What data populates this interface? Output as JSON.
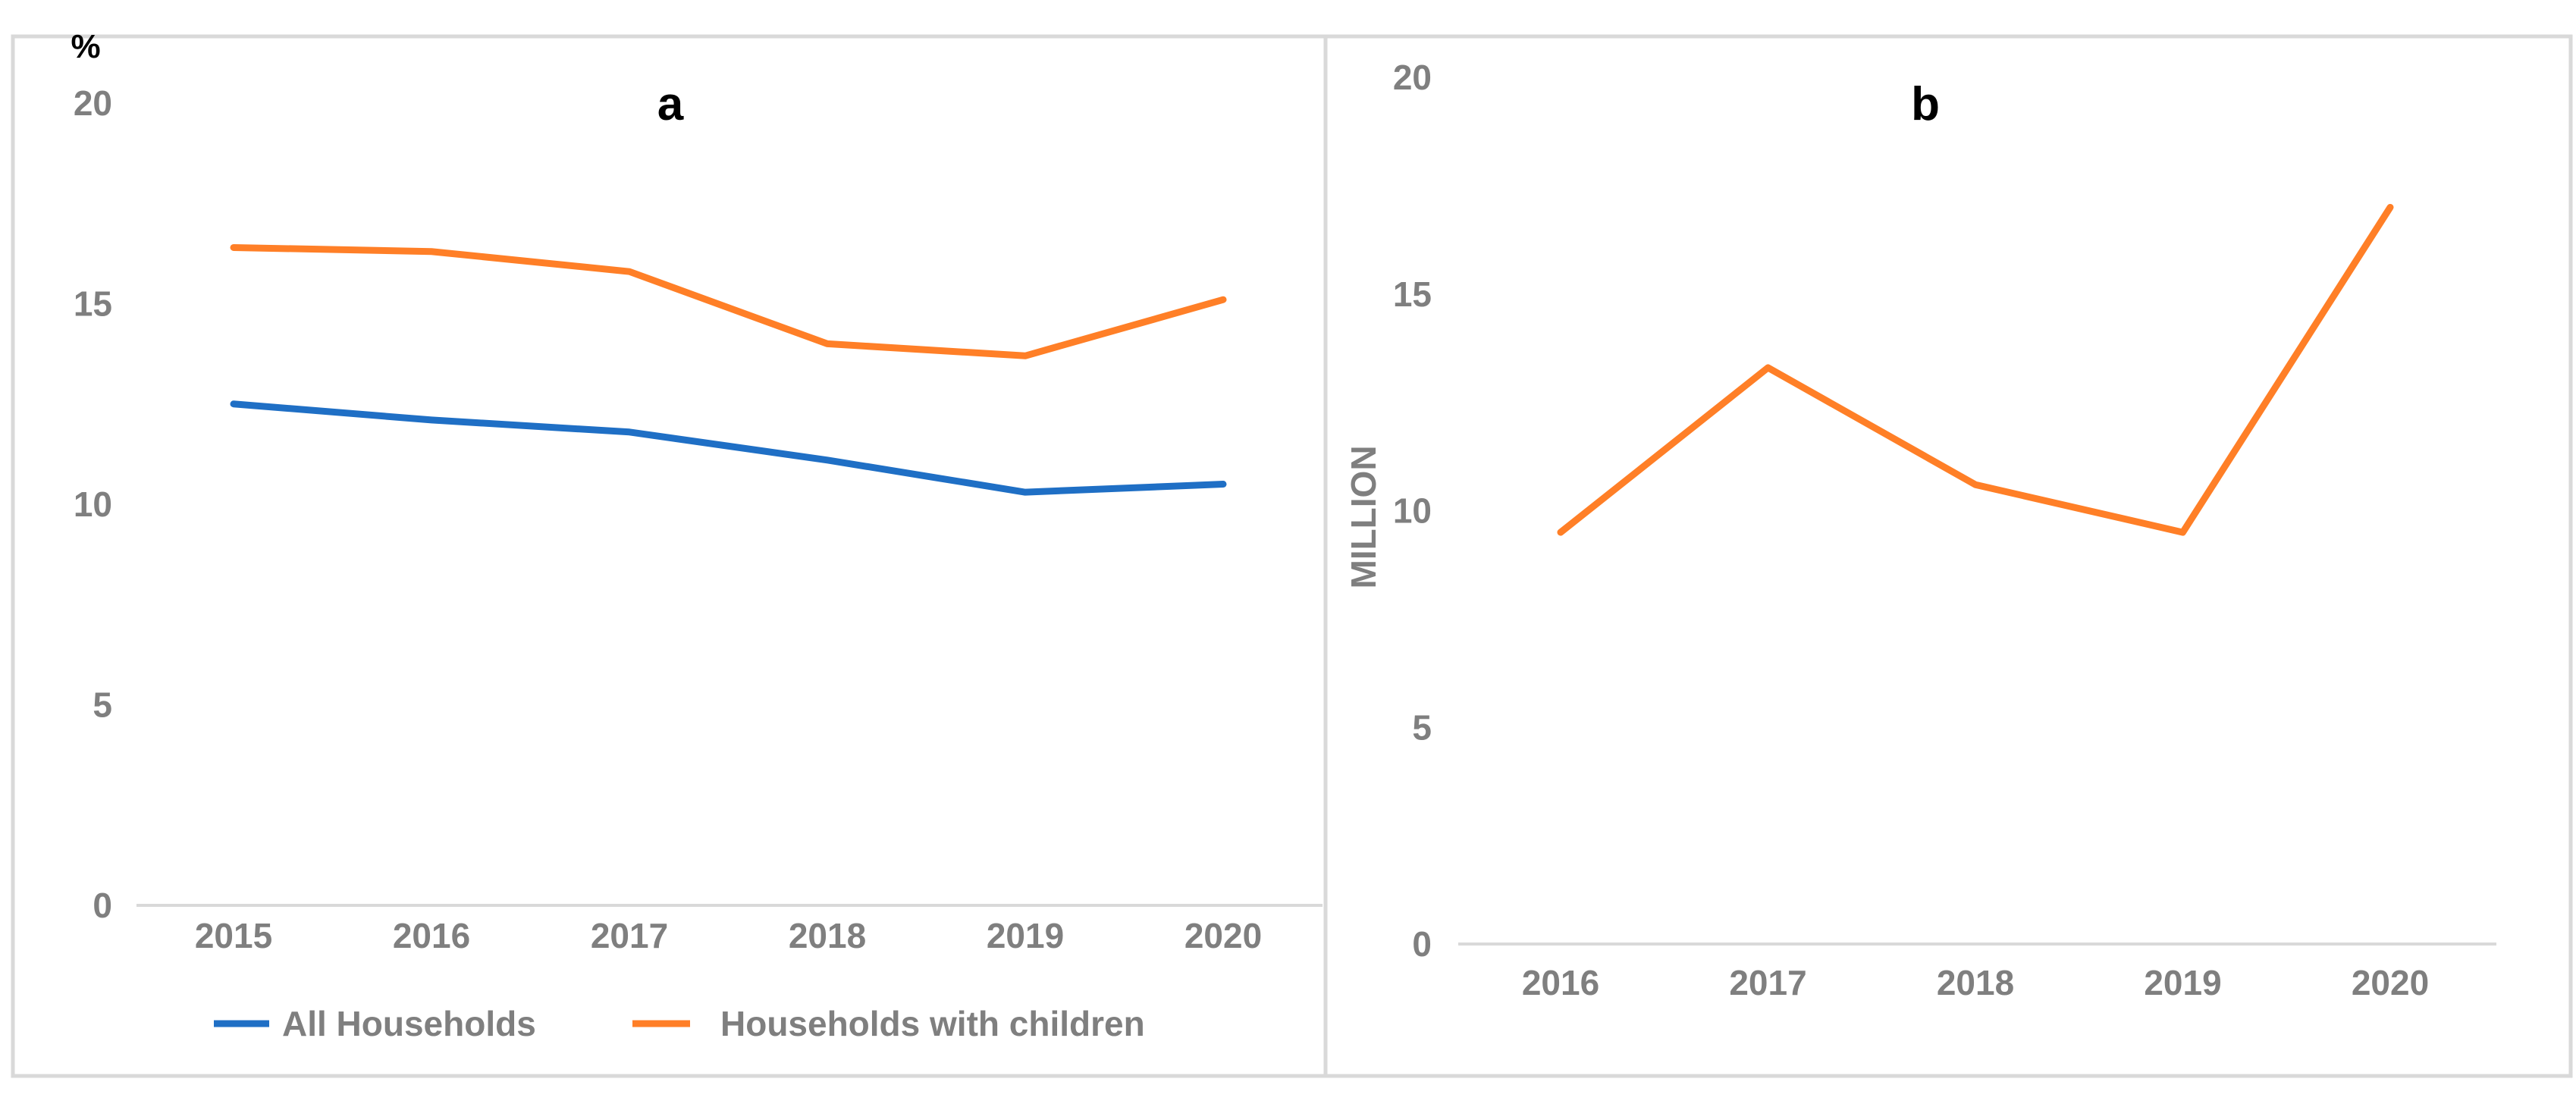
{
  "chart_data": [
    {
      "type": "line",
      "title": "a",
      "ylabel": "%",
      "xlabel": "",
      "categories": [
        "2015",
        "2016",
        "2017",
        "2018",
        "2019",
        "2020"
      ],
      "yticks": [
        "0",
        "5",
        "10",
        "15",
        "20"
      ],
      "ylim": [
        0,
        20
      ],
      "grid": false,
      "legend_position": "bottom",
      "series": [
        {
          "name": "All Households",
          "color": "#1f6fc5",
          "values": [
            12.5,
            12.1,
            11.8,
            11.1,
            10.3,
            10.5
          ]
        },
        {
          "name": "Households with children",
          "color": "#ff7f27",
          "values": [
            16.4,
            16.3,
            15.8,
            14.0,
            13.7,
            15.1
          ]
        }
      ]
    },
    {
      "type": "line",
      "title": "b",
      "ylabel": "MILLION",
      "xlabel": "",
      "categories": [
        "2016",
        "2017",
        "2018",
        "2019",
        "2020"
      ],
      "yticks": [
        "0",
        "5",
        "10",
        "15",
        "20"
      ],
      "ylim": [
        0,
        20
      ],
      "grid": false,
      "series": [
        {
          "color": "#ff7f27",
          "values": [
            9.5,
            13.3,
            10.6,
            9.5,
            17.0
          ]
        }
      ]
    }
  ]
}
